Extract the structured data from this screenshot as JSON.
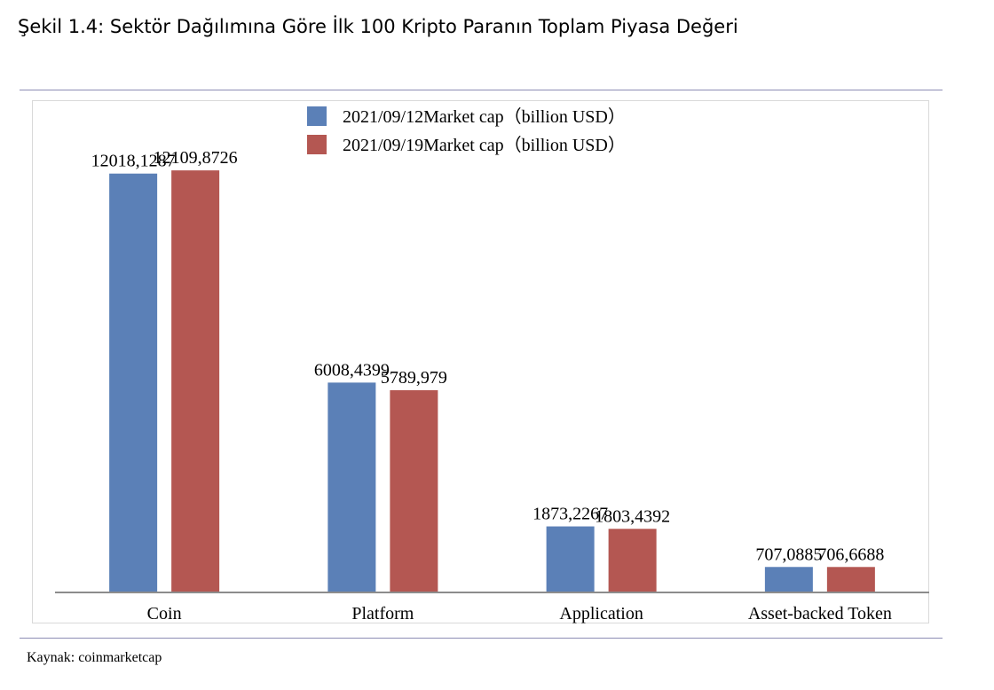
{
  "figure_title": "Şekil 1.4: Sektör Dağılımına Göre İlk 100 Kripto Paranın Toplam Piyasa Değeri",
  "source": "Kaynak: coinmarketcap",
  "colors": {
    "series1": "#5b80b7",
    "series2": "#b45752",
    "axis": "#8c8c8c"
  },
  "chart_data": {
    "type": "bar",
    "title": "",
    "xlabel": "",
    "ylabel": "",
    "ylim": [
      0,
      14000
    ],
    "grid": false,
    "legend_position": "top",
    "categories": [
      "Coin",
      "Platform",
      "Application",
      "Asset-backed Token"
    ],
    "series": [
      {
        "name": "2021/09/12Market cap（billion USD）",
        "values": [
          12018.1287,
          6008.4399,
          1873.2267,
          707.0885
        ],
        "labels": [
          "12018,1287",
          "6008,4399",
          "1873,2267",
          "707,0885"
        ]
      },
      {
        "name": "2021/09/19Market cap（billion USD）",
        "values": [
          12109.8726,
          5789.979,
          1803.4392,
          706.6688
        ],
        "labels": [
          "12109,8726",
          "5789,979",
          "1803,4392",
          "706,6688"
        ]
      }
    ]
  }
}
